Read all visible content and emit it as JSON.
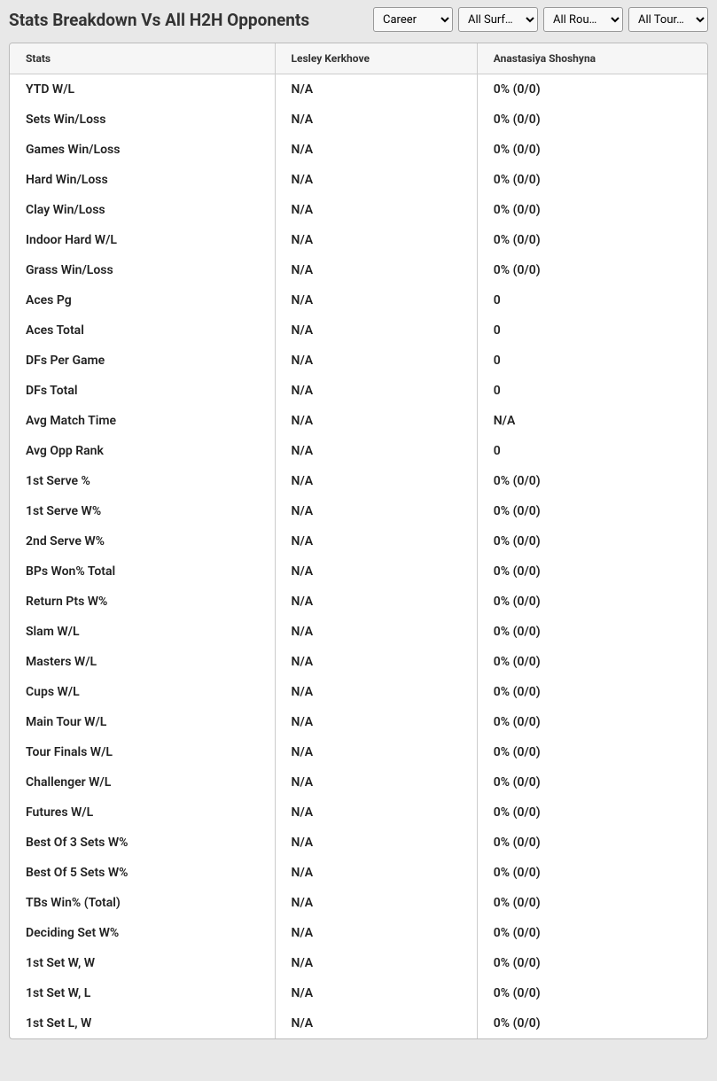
{
  "header": {
    "title": "Stats Breakdown Vs All H2H Opponents"
  },
  "filters": {
    "period": "Career",
    "surface": "All Surf…",
    "round": "All Rou…",
    "tour": "All Tour…"
  },
  "table": {
    "columns": {
      "stat": "Stats",
      "player1": "Lesley Kerkhove",
      "player2": "Anastasiya Shoshyna"
    },
    "rows": [
      {
        "stat": "YTD W/L",
        "p1": "N/A",
        "p2": "0% (0/0)"
      },
      {
        "stat": "Sets Win/Loss",
        "p1": "N/A",
        "p2": "0% (0/0)"
      },
      {
        "stat": "Games Win/Loss",
        "p1": "N/A",
        "p2": "0% (0/0)"
      },
      {
        "stat": "Hard Win/Loss",
        "p1": "N/A",
        "p2": "0% (0/0)"
      },
      {
        "stat": "Clay Win/Loss",
        "p1": "N/A",
        "p2": "0% (0/0)"
      },
      {
        "stat": "Indoor Hard W/L",
        "p1": "N/A",
        "p2": "0% (0/0)"
      },
      {
        "stat": "Grass Win/Loss",
        "p1": "N/A",
        "p2": "0% (0/0)"
      },
      {
        "stat": "Aces Pg",
        "p1": "N/A",
        "p2": "0"
      },
      {
        "stat": "Aces Total",
        "p1": "N/A",
        "p2": "0"
      },
      {
        "stat": "DFs Per Game",
        "p1": "N/A",
        "p2": "0"
      },
      {
        "stat": "DFs Total",
        "p1": "N/A",
        "p2": "0"
      },
      {
        "stat": "Avg Match Time",
        "p1": "N/A",
        "p2": "N/A"
      },
      {
        "stat": "Avg Opp Rank",
        "p1": "N/A",
        "p2": "0"
      },
      {
        "stat": "1st Serve %",
        "p1": "N/A",
        "p2": "0% (0/0)"
      },
      {
        "stat": "1st Serve W%",
        "p1": "N/A",
        "p2": "0% (0/0)"
      },
      {
        "stat": "2nd Serve W%",
        "p1": "N/A",
        "p2": "0% (0/0)"
      },
      {
        "stat": "BPs Won% Total",
        "p1": "N/A",
        "p2": "0% (0/0)"
      },
      {
        "stat": "Return Pts W%",
        "p1": "N/A",
        "p2": "0% (0/0)"
      },
      {
        "stat": "Slam W/L",
        "p1": "N/A",
        "p2": "0% (0/0)"
      },
      {
        "stat": "Masters W/L",
        "p1": "N/A",
        "p2": "0% (0/0)"
      },
      {
        "stat": "Cups W/L",
        "p1": "N/A",
        "p2": "0% (0/0)"
      },
      {
        "stat": "Main Tour W/L",
        "p1": "N/A",
        "p2": "0% (0/0)"
      },
      {
        "stat": "Tour Finals W/L",
        "p1": "N/A",
        "p2": "0% (0/0)"
      },
      {
        "stat": "Challenger W/L",
        "p1": "N/A",
        "p2": "0% (0/0)"
      },
      {
        "stat": "Futures W/L",
        "p1": "N/A",
        "p2": "0% (0/0)"
      },
      {
        "stat": "Best Of 3 Sets W%",
        "p1": "N/A",
        "p2": "0% (0/0)"
      },
      {
        "stat": "Best Of 5 Sets W%",
        "p1": "N/A",
        "p2": "0% (0/0)"
      },
      {
        "stat": "TBs Win% (Total)",
        "p1": "N/A",
        "p2": "0% (0/0)"
      },
      {
        "stat": "Deciding Set W%",
        "p1": "N/A",
        "p2": "0% (0/0)"
      },
      {
        "stat": "1st Set W, W",
        "p1": "N/A",
        "p2": "0% (0/0)"
      },
      {
        "stat": "1st Set W, L",
        "p1": "N/A",
        "p2": "0% (0/0)"
      },
      {
        "stat": "1st Set L, W",
        "p1": "N/A",
        "p2": "0% (0/0)"
      }
    ]
  },
  "styling": {
    "background_color": "#e8e8e8",
    "table_bg": "#ffffff",
    "header_bg": "#f6f6f6",
    "border_color": "#cccccc",
    "text_color": "#222222",
    "title_fontsize": 19,
    "cell_fontsize": 14,
    "header_fontsize": 12
  }
}
